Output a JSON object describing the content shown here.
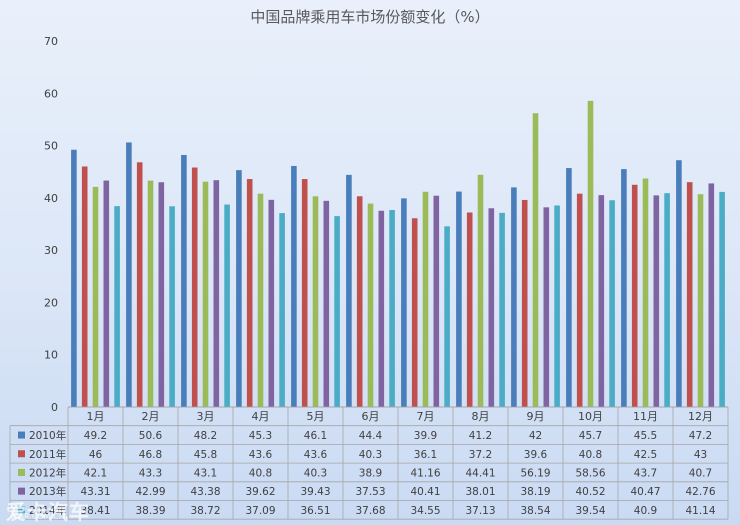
{
  "chart_data": {
    "type": "bar",
    "title": "中国品牌乘用车市场份额变化（%）",
    "categories": [
      "1月",
      "2月",
      "3月",
      "4月",
      "5月",
      "6月",
      "7月",
      "8月",
      "9月",
      "10月",
      "11月",
      "12月"
    ],
    "ylim": [
      0,
      70
    ],
    "yticks": [
      0,
      10,
      20,
      30,
      40,
      50,
      60,
      70
    ],
    "grid": false,
    "legend": "data-table",
    "series": [
      {
        "name": "2010年",
        "color": "#4a7ebb",
        "values": [
          49.2,
          50.6,
          48.2,
          45.3,
          46.1,
          44.4,
          39.9,
          41.2,
          42,
          45.7,
          45.5,
          47.2
        ],
        "labels": [
          "49.2",
          "50.6",
          "48.2",
          "45.3",
          "46.1",
          "44.4",
          "39.9",
          "41.2",
          "42",
          "45.7",
          "45.5",
          "47.2"
        ]
      },
      {
        "name": "2011年",
        "color": "#c0504d",
        "values": [
          46,
          46.8,
          45.8,
          43.6,
          43.6,
          40.3,
          36.1,
          37.2,
          39.6,
          40.8,
          42.5,
          43
        ],
        "labels": [
          "46",
          "46.8",
          "45.8",
          "43.6",
          "43.6",
          "40.3",
          "36.1",
          "37.2",
          "39.6",
          "40.8",
          "42.5",
          "43"
        ]
      },
      {
        "name": "2012年",
        "color": "#9bbb59",
        "values": [
          42.1,
          43.3,
          43.1,
          40.8,
          40.3,
          38.9,
          41.16,
          44.41,
          56.19,
          58.56,
          43.7,
          40.7
        ],
        "labels": [
          "42.1",
          "43.3",
          "43.1",
          "40.8",
          "40.3",
          "38.9",
          "41.16",
          "44.41",
          "56.19",
          "58.56",
          "43.7",
          "40.7"
        ]
      },
      {
        "name": "2013年",
        "color": "#8064a2",
        "values": [
          43.31,
          42.99,
          43.38,
          39.62,
          39.43,
          37.53,
          40.41,
          38.01,
          38.19,
          40.52,
          40.47,
          42.76
        ],
        "labels": [
          "43.31",
          "42.99",
          "43.38",
          "39.62",
          "39.43",
          "37.53",
          "40.41",
          "38.01",
          "38.19",
          "40.52",
          "40.47",
          "42.76"
        ]
      },
      {
        "name": "2014年",
        "color": "#4bacc6",
        "values": [
          38.41,
          38.39,
          38.72,
          37.09,
          36.51,
          37.68,
          34.55,
          37.13,
          38.54,
          39.54,
          40.9,
          41.14
        ],
        "labels": [
          "38.41",
          "38.39",
          "38.72",
          "37.09",
          "36.51",
          "37.68",
          "34.55",
          "37.13",
          "38.54",
          "39.54",
          "40.9",
          "41.14"
        ]
      }
    ]
  },
  "watermark": {
    "main": "爱卡汽车",
    "sub": "XCAR.COM.CN"
  }
}
